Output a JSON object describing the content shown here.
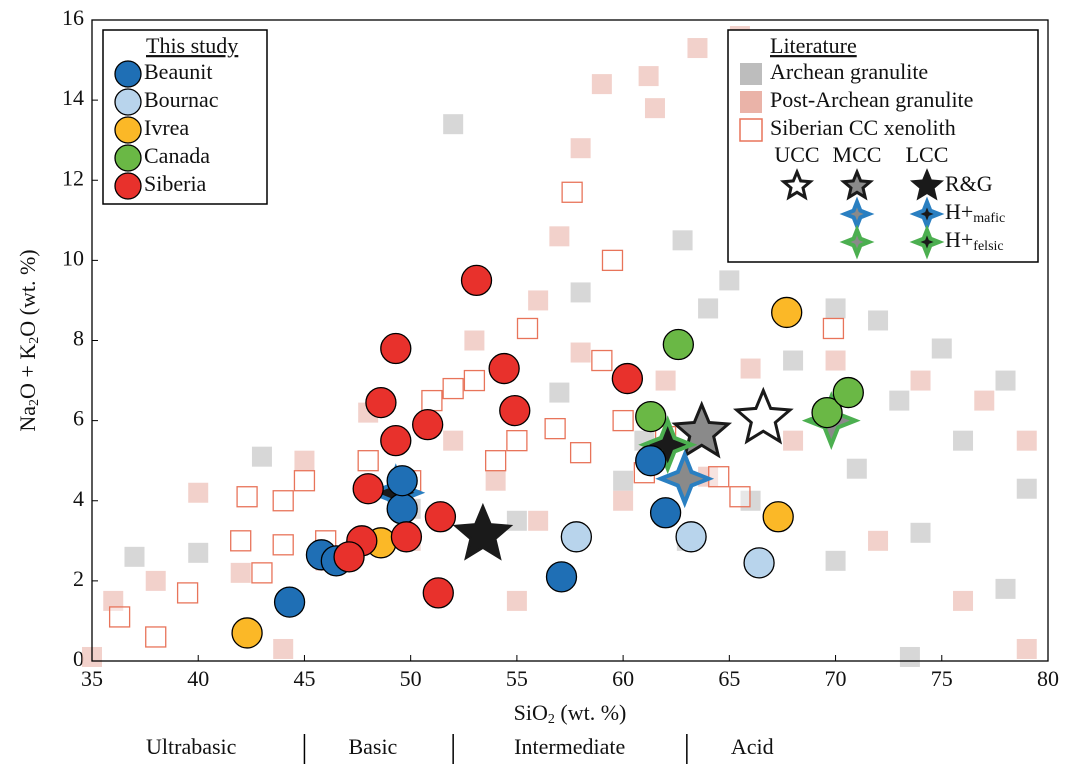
{
  "chart_data": {
    "type": "scatter",
    "xlabel": [
      "SiO",
      "2",
      " (wt. %)"
    ],
    "ylabel": [
      "Na",
      "2",
      "O + K",
      "2",
      "O (wt. %)"
    ],
    "xlim": [
      35,
      80
    ],
    "xticks": [
      35,
      40,
      45,
      50,
      55,
      60,
      65,
      70,
      75,
      80
    ],
    "ylim": [
      0,
      16
    ],
    "yticks": [
      0,
      2,
      4,
      6,
      8,
      10,
      12,
      14,
      16
    ],
    "background_series": [
      {
        "name": "Archean granulite",
        "color": "#bdbdbd",
        "marker": "square",
        "x": [
          52,
          62.8,
          58,
          65,
          70,
          72,
          75,
          78,
          68,
          73,
          76,
          71,
          66,
          60,
          55,
          50,
          47,
          63,
          70,
          74,
          78,
          73.5,
          40,
          37,
          43,
          79,
          64,
          66,
          57,
          61
        ],
        "y": [
          13.4,
          10.5,
          9.2,
          9.5,
          8.8,
          8.5,
          7.8,
          7.0,
          7.5,
          6.5,
          5.5,
          4.8,
          4.0,
          4.5,
          3.5,
          3.8,
          2.5,
          3.0,
          2.5,
          3.2,
          1.8,
          0.1,
          2.7,
          2.6,
          5.1,
          4.3,
          8.8,
          11.4,
          6.7,
          5.5
        ]
      },
      {
        "name": "Post-Archean granulite",
        "color": "#eab3a8",
        "marker": "square",
        "x": [
          65.5,
          63.5,
          59,
          61.2,
          61.5,
          58,
          57,
          56,
          53,
          58,
          62,
          66,
          70,
          74,
          77,
          79,
          68,
          64,
          60,
          56,
          50,
          46,
          42,
          38,
          36,
          40,
          45,
          48,
          72,
          76,
          79,
          55,
          44,
          35,
          52,
          54
        ],
        "y": [
          15.6,
          15.3,
          14.4,
          14.6,
          13.8,
          12.8,
          10.6,
          9.0,
          8.0,
          7.7,
          7.0,
          7.3,
          7.5,
          7.0,
          6.5,
          5.5,
          5.5,
          4.6,
          4.0,
          3.5,
          3.0,
          2.5,
          2.2,
          2.0,
          1.5,
          4.2,
          5.0,
          6.2,
          3.0,
          1.5,
          0.3,
          1.5,
          0.3,
          0.1,
          5.5,
          4.5
        ]
      },
      {
        "name": "Siberian CC xenolith",
        "color": "#e8745a",
        "marker": "hollow-square",
        "x": [
          57.6,
          59.5,
          53,
          55.5,
          59,
          60,
          62,
          64.5,
          65.5,
          69.9,
          55,
          52,
          51,
          50,
          48,
          45,
          44,
          42.3,
          42,
          44,
          46,
          43,
          39.5,
          38,
          36.3,
          56.8,
          58,
          54,
          61
        ],
        "y": [
          11.7,
          10.0,
          7.0,
          8.3,
          7.5,
          6.0,
          5.6,
          4.6,
          4.1,
          8.3,
          5.5,
          6.8,
          6.5,
          4.5,
          5.0,
          4.5,
          4.0,
          4.1,
          3.0,
          2.9,
          3.0,
          2.2,
          1.7,
          0.6,
          1.1,
          5.8,
          5.2,
          5.0,
          4.7
        ]
      }
    ],
    "series": [
      {
        "name": "Beaunit",
        "color": "#1f6fb5",
        "x": [
          44.3,
          45.8,
          46.5,
          49.6,
          49.6,
          57.1,
          61.3,
          62.0
        ],
        "y": [
          1.47,
          2.65,
          2.5,
          3.8,
          4.5,
          2.1,
          5.0,
          3.7
        ]
      },
      {
        "name": "Bournac",
        "color": "#b8d4ec",
        "x": [
          57.8,
          63.2,
          66.4
        ],
        "y": [
          3.1,
          3.1,
          2.45
        ]
      },
      {
        "name": "Ivrea",
        "color": "#fbb827",
        "x": [
          42.3,
          48.6,
          67.7,
          67.3
        ],
        "y": [
          0.7,
          2.95,
          8.7,
          3.6
        ]
      },
      {
        "name": "Canada",
        "color": "#6ab845",
        "x": [
          62.6,
          61.3,
          69.6,
          70.6
        ],
        "y": [
          7.9,
          6.1,
          6.2,
          6.7
        ]
      },
      {
        "name": "Siberia",
        "color": "#e8312c",
        "x": [
          53.1,
          49.3,
          54.4,
          48.6,
          50.8,
          49.3,
          54.9,
          60.2,
          48.0,
          51.4,
          49.8,
          47.7,
          47.1,
          51.3
        ],
        "y": [
          9.5,
          7.8,
          7.3,
          6.45,
          5.9,
          5.5,
          6.25,
          7.05,
          4.3,
          3.6,
          3.1,
          3.0,
          2.6,
          1.7
        ]
      }
    ],
    "crust_labels": [
      "UCC",
      "MCC",
      "LCC"
    ],
    "crust_fills": [
      "#ffffff",
      "#8a8a8a",
      "#1a1a1a"
    ],
    "star_series": [
      {
        "name": [
          "R&G"
        ],
        "color": "#1a1a1a",
        "shape": "star5",
        "x": [
          66.6,
          63.7,
          53.4
        ],
        "y": [
          6.05,
          5.7,
          3.15
        ]
      },
      {
        "name": [
          "H+",
          "mafic"
        ],
        "color": "#2a7fc1",
        "shape": "star4",
        "x": [
          null,
          62.9,
          49.3
        ],
        "y": [
          null,
          4.55,
          4.2
        ]
      },
      {
        "name": [
          "H+",
          "felsic"
        ],
        "color": "#4caf50",
        "shape": "star4",
        "x": [
          null,
          69.8,
          62.1
        ],
        "y": [
          null,
          6.0,
          5.4
        ]
      }
    ],
    "study_legend_title": "This study",
    "literature_legend_title": "Literature",
    "classes": {
      "names": [
        "Ultrabasic",
        "Basic",
        "Intermediate",
        "Acid"
      ],
      "bounds": [
        45,
        52,
        63
      ]
    }
  }
}
